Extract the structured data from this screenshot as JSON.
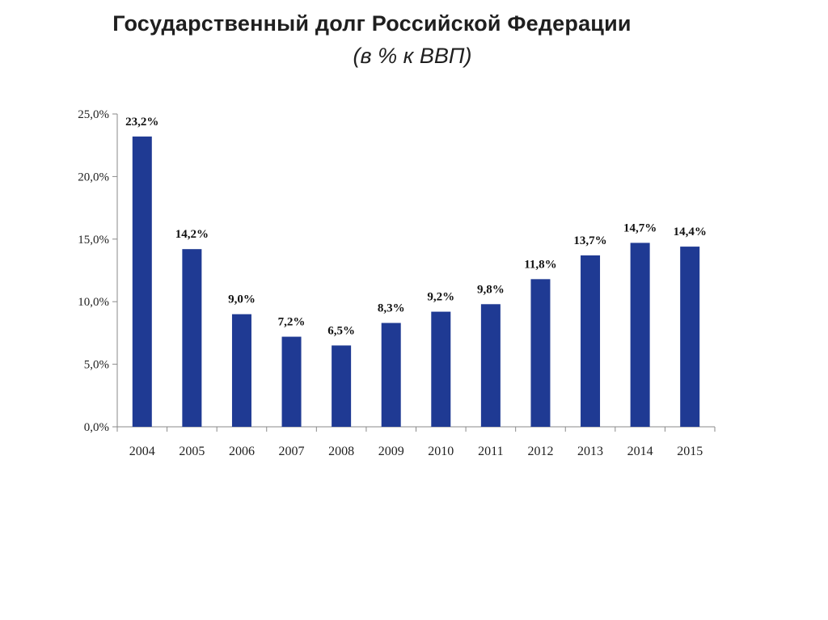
{
  "chart_data": {
    "type": "bar",
    "title": "Государственный долг Российской Федерации",
    "subtitle": "(в % к ВВП)",
    "categories": [
      "2004",
      "2005",
      "2006",
      "2007",
      "2008",
      "2009",
      "2010",
      "2011",
      "2012",
      "2013",
      "2014",
      "2015"
    ],
    "values": [
      23.2,
      14.2,
      9.0,
      7.2,
      6.5,
      8.3,
      9.2,
      9.8,
      11.8,
      13.7,
      14.7,
      14.4
    ],
    "value_labels": [
      "23,2%",
      "14,2%",
      "9,0%",
      "7,2%",
      "6,5%",
      "8,3%",
      "9,2%",
      "9,8%",
      "11,8%",
      "13,7%",
      "14,7%",
      "14,4%"
    ],
    "ylim": [
      0,
      25
    ],
    "yticks": [
      0,
      5,
      10,
      15,
      20,
      25
    ],
    "ytick_labels": [
      "0,0%",
      "5,0%",
      "10,0%",
      "15,0%",
      "20,0%",
      "25,0%"
    ],
    "bar_color": "#1f3a93",
    "grid": false,
    "legend": "none"
  }
}
